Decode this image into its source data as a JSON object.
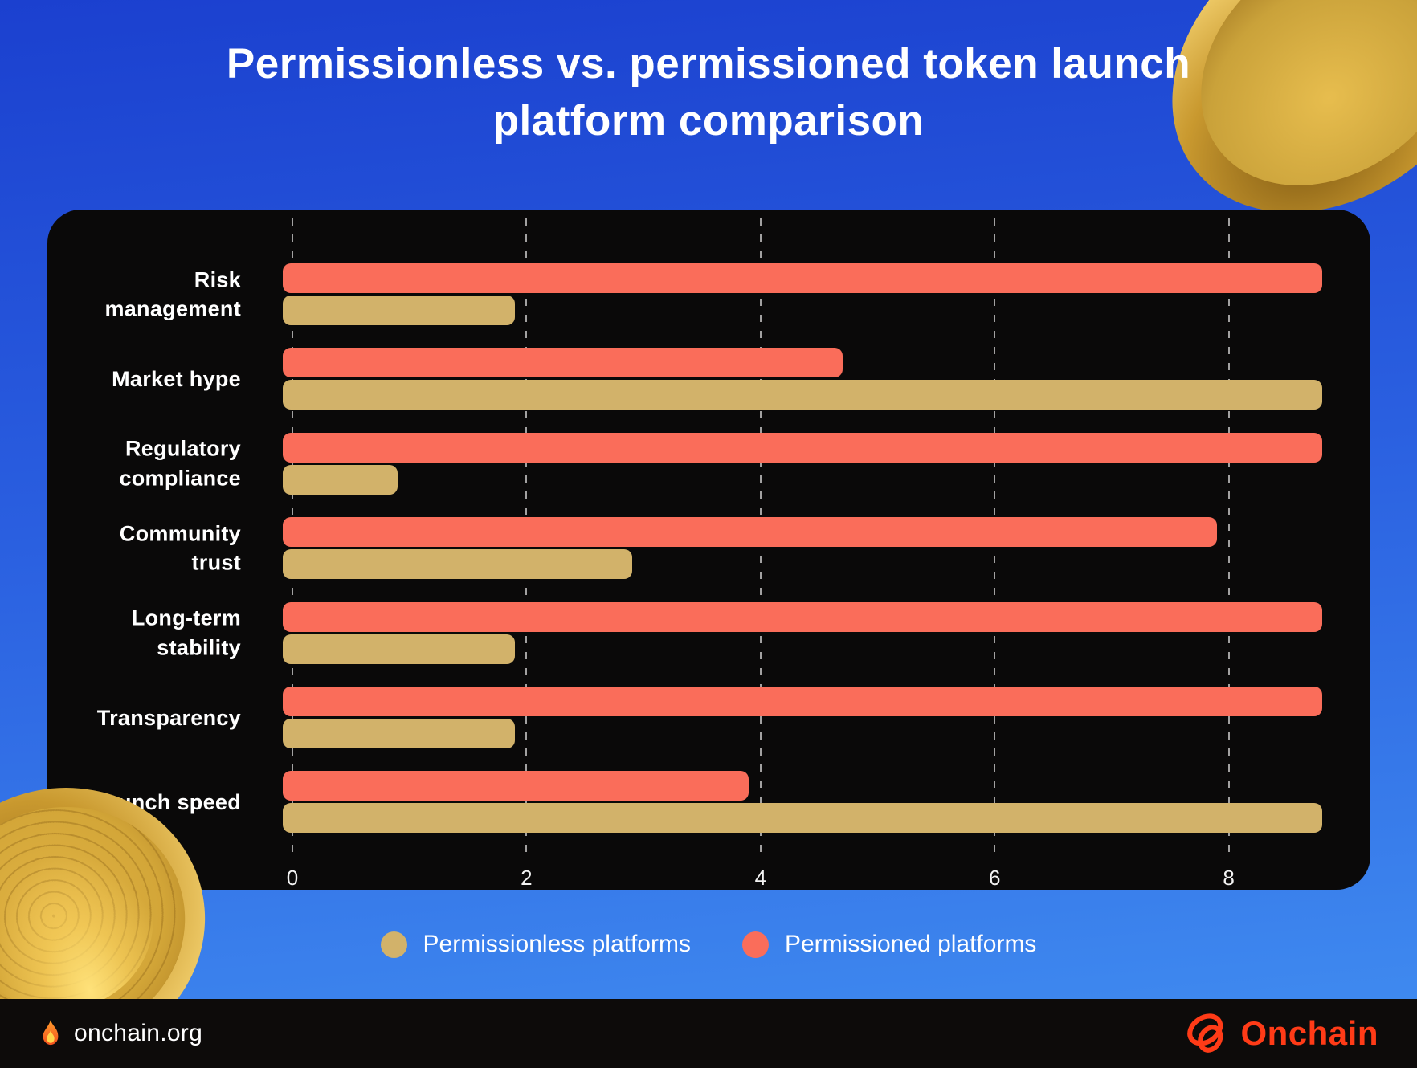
{
  "title": {
    "line1": "Permissionless vs. permissioned token launch",
    "line2": "platform comparison"
  },
  "chart_data": {
    "type": "bar",
    "orientation": "horizontal",
    "title": "Permissionless vs. permissioned token launch platform comparison",
    "xlabel": "",
    "ylabel": "",
    "categories": [
      "Risk\nmanagement",
      "Market hype",
      "Regulatory\ncompliance",
      "Community\ntrust",
      "Long-term\nstability",
      "Transparency",
      "Launch speed"
    ],
    "series": [
      {
        "name": "Permissioned platforms",
        "color": "#fa6d5a",
        "values": [
          8.8,
          4.7,
          8.8,
          7.9,
          8.8,
          8.8,
          3.9
        ]
      },
      {
        "name": "Permissionless platforms",
        "color": "#d2b26a",
        "values": [
          1.9,
          8.8,
          0.9,
          2.9,
          1.9,
          1.9,
          8.8
        ]
      }
    ],
    "xticks": [
      0,
      2,
      4,
      6,
      8
    ],
    "xlim": [
      0,
      9.2
    ],
    "grid": "dashed-vertical-white",
    "legend_position": "bottom"
  },
  "legend": {
    "items": [
      {
        "label": "Permissionless platforms",
        "color": "#d2b26a"
      },
      {
        "label": "Permissioned platforms",
        "color": "#fa6d5a"
      }
    ]
  },
  "footer": {
    "site": "onchain.org",
    "brand": "Onchain"
  },
  "icons": {
    "flame-icon": "🔥",
    "onchain-knot-icon": "knot-mark"
  },
  "colors": {
    "permissioned": "#fa6d5a",
    "permissionless": "#d2b26a",
    "background_top": "#1b40cf",
    "background_bottom": "#418ef1",
    "panel": "#0a0909",
    "footer": "#0d0b0a",
    "brand_orange": "#ff3b17",
    "text": "#ffffff"
  }
}
